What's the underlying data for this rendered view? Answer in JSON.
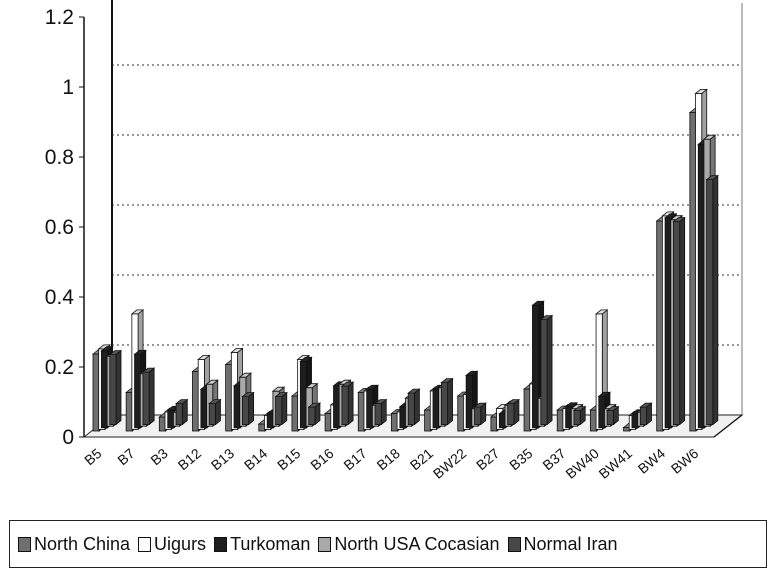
{
  "chart_data": {
    "type": "bar",
    "categories": [
      "B5",
      "B7",
      "B3",
      "B12",
      "B13",
      "B14",
      "B15",
      "B16",
      "B17",
      "B18",
      "B21",
      "BW22",
      "B27",
      "B35",
      "B37",
      "BW40",
      "BW41",
      "BW4",
      "BW6"
    ],
    "series": [
      {
        "name": "North China",
        "color": "#6f6f6f",
        "values": [
          0.22,
          0.11,
          0.04,
          0.17,
          0.19,
          0.02,
          0.1,
          0.05,
          0.11,
          0.05,
          0.06,
          0.1,
          0.04,
          0.12,
          0.06,
          0.06,
          0.01,
          0.6,
          0.91
        ]
      },
      {
        "name": "Uigurs",
        "color": "#ffffff",
        "values": [
          0.23,
          0.33,
          0.05,
          0.2,
          0.22,
          0.04,
          0.2,
          0.07,
          0.11,
          0.05,
          0.11,
          0.1,
          0.06,
          0.13,
          0.06,
          0.33,
          0.04,
          0.61,
          0.96
        ]
      },
      {
        "name": "Turkoman",
        "color": "#1e1e1e",
        "values": [
          0.22,
          0.21,
          0.05,
          0.11,
          0.12,
          0.04,
          0.19,
          0.12,
          0.11,
          0.06,
          0.11,
          0.15,
          0.04,
          0.35,
          0.06,
          0.09,
          0.04,
          0.6,
          0.81
        ]
      },
      {
        "name": "North USA Cocasian",
        "color": "#a9a9a9",
        "values": [
          0.2,
          0.15,
          0.04,
          0.12,
          0.14,
          0.1,
          0.11,
          0.12,
          0.06,
          0.08,
          0.11,
          0.05,
          0.06,
          0.08,
          0.05,
          0.05,
          0.04,
          0.59,
          0.82
        ]
      },
      {
        "name": "Normal Iran",
        "color": "#474747",
        "values": [
          0.2,
          0.15,
          0.06,
          0.06,
          0.08,
          0.08,
          0.05,
          0.11,
          0.06,
          0.09,
          0.12,
          0.05,
          0.06,
          0.3,
          0.04,
          0.04,
          0.05,
          0.58,
          0.7
        ]
      }
    ],
    "ylim": [
      0,
      1.2
    ],
    "yticks": [
      "0",
      "0.2",
      "0.4",
      "0.6",
      "0.8",
      "1",
      "1.2"
    ],
    "grid": true,
    "legend_position": "bottom",
    "xlabel": "",
    "ylabel": ""
  }
}
